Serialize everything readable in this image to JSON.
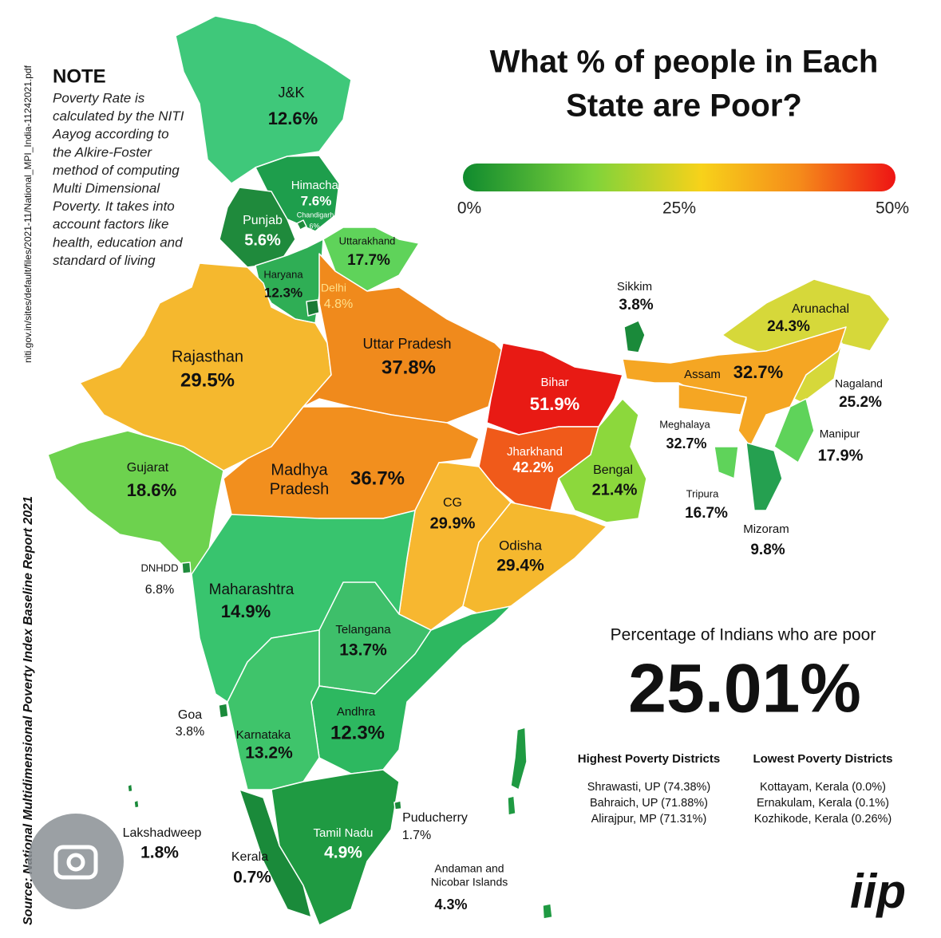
{
  "title_lines": [
    "What % of people in Each",
    "State are Poor?"
  ],
  "scale_labels": [
    "0%",
    "25%",
    "50%"
  ],
  "note": {
    "heading": "NOTE",
    "lines": [
      "Poverty Rate is",
      "calculated by the NITI",
      "Aayog according to",
      "the Alkire-Foster",
      "method of computing",
      "Multi Dimensional",
      "Poverty. It takes into",
      "account factors like",
      "health, education and",
      "standard of living"
    ]
  },
  "source": "Source: National Multidimensional Poverty Index Baseline Report 2021",
  "source_url": "niti.gov.in/sites/default/files/2021-11/National_MPI_India-11242021.pdf",
  "states": [
    {
      "name": [
        "J&K"
      ],
      "value": "12.6%",
      "color": "#3fc87a"
    },
    {
      "name": [
        "Himachal"
      ],
      "value": "7.6%",
      "color": "#1e9e4c"
    },
    {
      "name": [
        "Punjab"
      ],
      "value": "5.6%",
      "color": "#1f8a3c"
    },
    {
      "name": [
        "Chandigarh"
      ],
      "value": "6%",
      "color": "#1f8a3c"
    },
    {
      "name": [
        "Uttarakhand"
      ],
      "value": "17.7%",
      "color": "#5fd35a"
    },
    {
      "name": [
        "Haryana"
      ],
      "value": "12.3%",
      "color": "#2fae55"
    },
    {
      "name": [
        "Delhi"
      ],
      "value": "4.8%",
      "color": "#1a7a35"
    },
    {
      "name": [
        "Rajasthan"
      ],
      "value": "29.5%",
      "color": "#f5b82e"
    },
    {
      "name": [
        "Uttar Pradesh"
      ],
      "value": "37.8%",
      "color": "#f08a1c"
    },
    {
      "name": [
        "Bihar"
      ],
      "value": "51.9%",
      "color": "#e81a14"
    },
    {
      "name": [
        "Gujarat"
      ],
      "value": "18.6%",
      "color": "#6dd24e"
    },
    {
      "name": [
        "Madhya",
        "Pradesh"
      ],
      "value": "36.7%",
      "color": "#f28f1e"
    },
    {
      "name": [
        "Jharkhand"
      ],
      "value": "42.2%",
      "color": "#f05a1a"
    },
    {
      "name": [
        "Bengal"
      ],
      "value": "21.4%",
      "color": "#8cd83c"
    },
    {
      "name": [
        "CG"
      ],
      "value": "29.9%",
      "color": "#f7b730"
    },
    {
      "name": [
        "Odisha"
      ],
      "value": "29.4%",
      "color": "#f5b82e"
    },
    {
      "name": [
        "Maharashtra"
      ],
      "value": "14.9%",
      "color": "#38c46e"
    },
    {
      "name": [
        "Telangana"
      ],
      "value": "13.7%",
      "color": "#3ebf6a"
    },
    {
      "name": [
        "Andhra"
      ],
      "value": "12.3%",
      "color": "#2db860"
    },
    {
      "name": [
        "Karnataka"
      ],
      "value": "13.2%",
      "color": "#3fc46b"
    },
    {
      "name": [
        "Goa"
      ],
      "value": "3.8%",
      "color": "#1a8a3a"
    },
    {
      "name": [
        "Kerala"
      ],
      "value": "0.7%",
      "color": "#1a8a3a"
    },
    {
      "name": [
        "Tamil Nadu"
      ],
      "value": "4.9%",
      "color": "#1f9a42"
    },
    {
      "name": [
        "Puducherry"
      ],
      "value": "1.7%",
      "color": "#1a8a3a"
    },
    {
      "name": [
        "Lakshadweep"
      ],
      "value": "1.8%",
      "color": "#1a8a3a"
    },
    {
      "name": [
        "DNHDD"
      ],
      "value": "6.8%",
      "color": "#1f8a3c"
    },
    {
      "name": [
        "Andaman and",
        "Nicobar Islands"
      ],
      "value": "4.3%",
      "color": "#1f9a42"
    },
    {
      "name": [
        "Sikkim"
      ],
      "value": "3.8%",
      "color": "#1a8a3a"
    },
    {
      "name": [
        "Arunachal"
      ],
      "value": "24.3%",
      "color": "#d6d83a"
    },
    {
      "name": [
        "Assam"
      ],
      "value": "32.7%",
      "color": "#f5a623"
    },
    {
      "name": [
        "Nagaland"
      ],
      "value": "25.2%",
      "color": "#d6d83a"
    },
    {
      "name": [
        "Meghalaya"
      ],
      "value": "32.7%",
      "color": "#f5a623"
    },
    {
      "name": [
        "Manipur"
      ],
      "value": "17.9%",
      "color": "#5fd35a"
    },
    {
      "name": [
        "Tripura"
      ],
      "value": "16.7%",
      "color": "#5fd35a"
    },
    {
      "name": [
        "Mizoram"
      ],
      "value": "9.8%",
      "color": "#25a050"
    }
  ],
  "summary": {
    "label": "Percentage of Indians who are poor",
    "value": "25.01%"
  },
  "highest": {
    "heading": "Highest Poverty Districts",
    "items": [
      "Shrawasti, UP (74.38%)",
      "Bahraich, UP (71.88%)",
      "Alirajpur, MP (71.31%)"
    ]
  },
  "lowest": {
    "heading": "Lowest Poverty Districts",
    "items": [
      "Kottayam, Kerala (0.0%)",
      "Ernakulam, Kerala (0.1%)",
      "Kozhikode, Kerala (0.26%)"
    ]
  },
  "logo": "iip"
}
